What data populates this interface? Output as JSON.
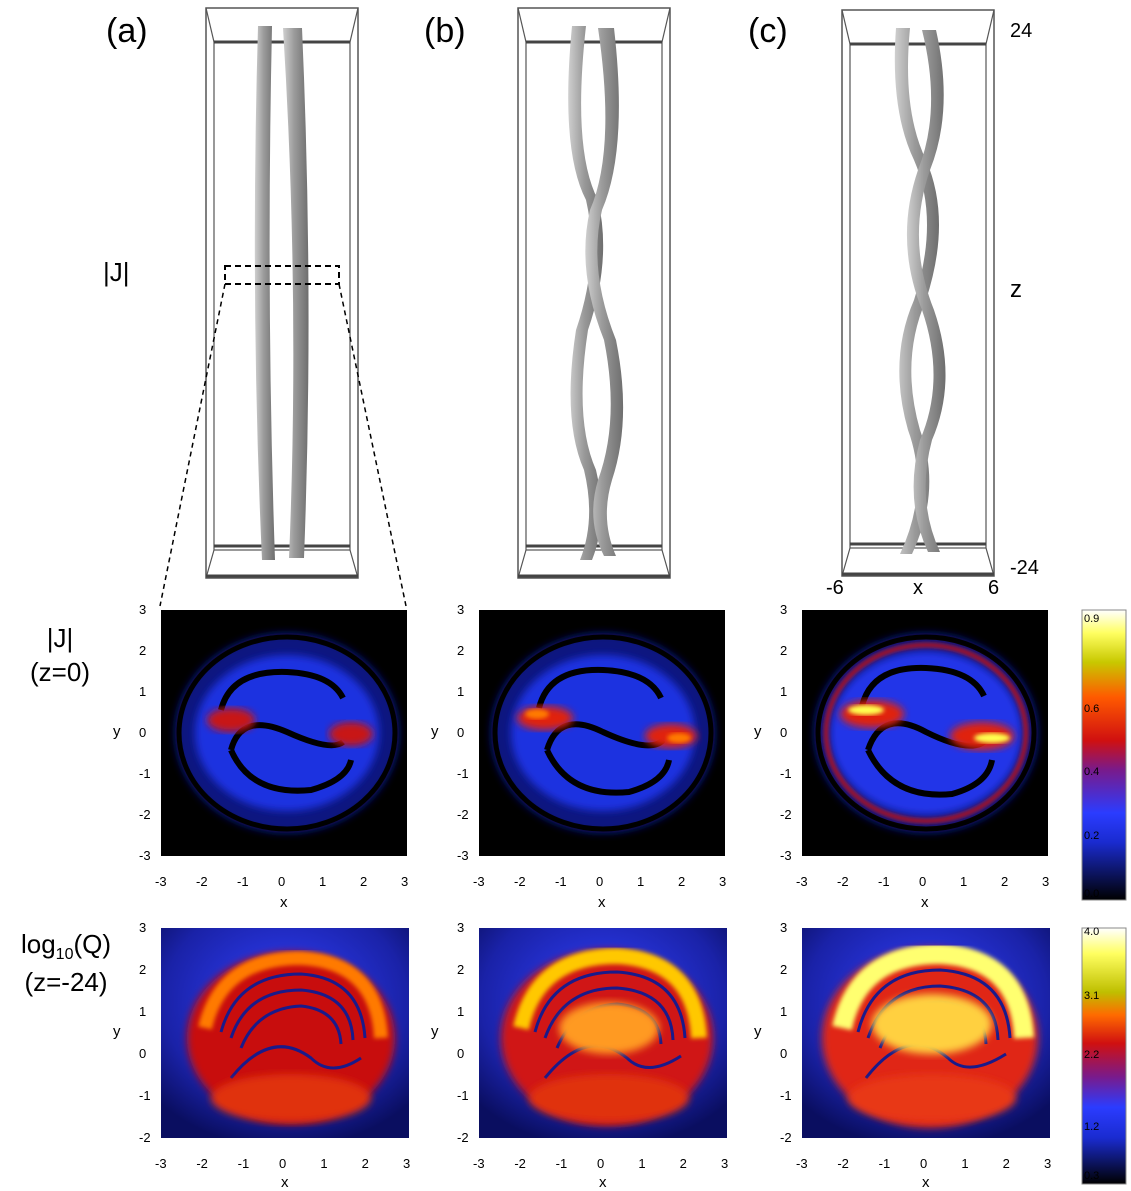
{
  "panels": [
    {
      "label": "(a)"
    },
    {
      "label": "(b)"
    },
    {
      "label": "(c)"
    }
  ],
  "row_labels": {
    "top": "|J|",
    "middle_line1": "|J|",
    "middle_line2": "(z=0)",
    "bottom_line1": "log",
    "bottom_sub": "10",
    "bottom_line1_tail": "(Q)",
    "bottom_line2": "(z=-24)"
  },
  "box_axes": {
    "z_label": "z",
    "z_max": "24",
    "z_min": "-24",
    "x_label": "x",
    "x_min": "-6",
    "x_max": "6"
  },
  "slice_axes": {
    "xlabel": "x",
    "ylabel": "y",
    "j_xticks": [
      "-3",
      "-2",
      "-1",
      "0",
      "1",
      "2",
      "3"
    ],
    "j_yticks": [
      "3",
      "2",
      "1",
      "0",
      "-1",
      "-2",
      "-3"
    ],
    "q_xticks": [
      "-3",
      "-2",
      "-1",
      "0",
      "1",
      "2",
      "3"
    ],
    "q_yticks": [
      "3",
      "2",
      "1",
      "0",
      "-1",
      "-2"
    ]
  },
  "colorbars": {
    "j": {
      "ticks": [
        "0.9",
        "0.6",
        "0.4",
        "0.2",
        "0.0"
      ]
    },
    "q": {
      "ticks": [
        "4.0",
        "3.1",
        "2.2",
        "1.2",
        "0.3"
      ]
    }
  },
  "colors": {
    "background_dark": "#000000",
    "tube_gray": "#a9a9a9",
    "box_frame": "#555555"
  }
}
